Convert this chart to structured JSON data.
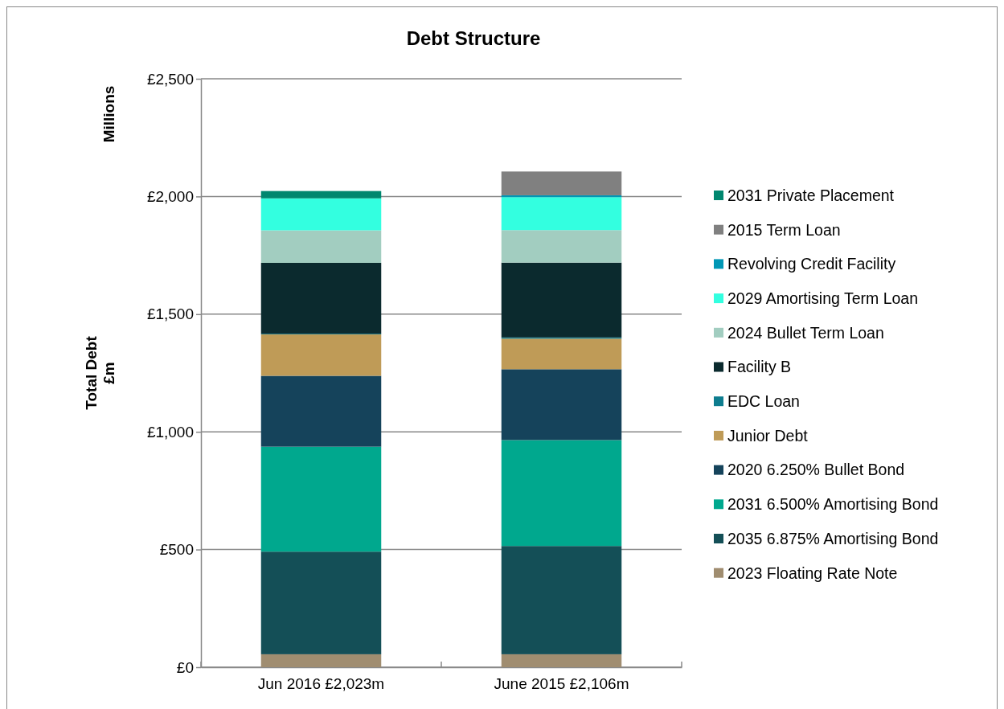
{
  "chart_data": {
    "type": "bar",
    "title": "Debt Structure",
    "ylabel": "Total Debt\n£m",
    "annotations": [
      "Millions"
    ],
    "categories": [
      "Jun 2016 £2,023m",
      "June 2015 £2,106m"
    ],
    "stacked": true,
    "grid": "y",
    "legend": "right",
    "ylim": [
      0,
      2500
    ],
    "yticks": [
      {
        "value": 0,
        "label": "£0"
      },
      {
        "value": 500,
        "label": "£500"
      },
      {
        "value": 1000,
        "label": "£1,000"
      },
      {
        "value": 1500,
        "label": "£1,500"
      },
      {
        "value": 2000,
        "label": "£2,000"
      },
      {
        "value": 2500,
        "label": "£2,500"
      }
    ],
    "series": [
      {
        "name": "2023 Floating Rate Note",
        "color": "#a08d70",
        "values": [
          55,
          55
        ]
      },
      {
        "name": "2035 6.875% Amortising Bond",
        "color": "#144f57",
        "values": [
          436,
          460
        ]
      },
      {
        "name": "2031 6.500% Amortising Bond",
        "color": "#00a88e",
        "values": [
          446,
          450
        ]
      },
      {
        "name": "2020 6.250% Bullet Bond",
        "color": "#15435b",
        "values": [
          301,
          301
        ]
      },
      {
        "name": "Junior Debt",
        "color": "#bf9b57",
        "values": [
          176,
          130
        ]
      },
      {
        "name": "EDC Loan",
        "color": "#0e7d8f",
        "values": [
          3,
          5
        ]
      },
      {
        "name": "Facility B",
        "color": "#0b2a2e",
        "values": [
          301,
          318
        ]
      },
      {
        "name": "2024 Bullet Term Loan",
        "color": "#a2cdc0",
        "values": [
          138,
          138
        ]
      },
      {
        "name": "2029 Amortising Term Loan",
        "color": "#33ffe0",
        "values": [
          136,
          140
        ]
      },
      {
        "name": "Revolving Credit Facility",
        "color": "#0097b5",
        "values": [
          0,
          8
        ]
      },
      {
        "name": "2015 Term Loan",
        "color": "#808080",
        "values": [
          0,
          101
        ]
      },
      {
        "name": "2031 Private Placement",
        "color": "#00876f",
        "values": [
          31,
          0
        ]
      }
    ]
  }
}
